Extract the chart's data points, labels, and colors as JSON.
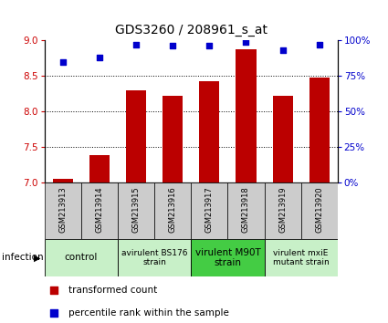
{
  "title": "GDS3260 / 208961_s_at",
  "categories": [
    "GSM213913",
    "GSM213914",
    "GSM213915",
    "GSM213916",
    "GSM213917",
    "GSM213918",
    "GSM213919",
    "GSM213920"
  ],
  "bar_values": [
    7.05,
    7.38,
    8.3,
    8.22,
    8.42,
    8.88,
    8.22,
    8.48
  ],
  "percentile_values": [
    85,
    88,
    97,
    96,
    96,
    99,
    93,
    97
  ],
  "ylim_left": [
    7.0,
    9.0
  ],
  "ylim_right": [
    0,
    100
  ],
  "yticks_left": [
    7.0,
    7.5,
    8.0,
    8.5,
    9.0
  ],
  "yticks_right": [
    0,
    25,
    50,
    75,
    100
  ],
  "ytick_labels_right": [
    "0%",
    "25%",
    "50%",
    "75%",
    "100%"
  ],
  "bar_color": "#bb0000",
  "dot_color": "#0000cc",
  "bar_bottom": 7.0,
  "grid_values": [
    7.5,
    8.0,
    8.5
  ],
  "groups": [
    {
      "label": "control",
      "start": 0,
      "end": 2,
      "color": "#c8f0c8",
      "bold": true
    },
    {
      "label": "avirulent BS176\nstrain",
      "start": 2,
      "end": 4,
      "color": "#c8f0c8",
      "bold": false
    },
    {
      "label": "virulent M90T\nstrain",
      "start": 4,
      "end": 6,
      "color": "#44cc44",
      "bold": true
    },
    {
      "label": "virulent mxiE\nmutant strain",
      "start": 6,
      "end": 8,
      "color": "#c8f0c8",
      "bold": false
    }
  ],
  "infection_label": "infection",
  "legend_items": [
    {
      "label": "transformed count",
      "color": "#bb0000",
      "marker": "s"
    },
    {
      "label": "percentile rank within the sample",
      "color": "#0000cc",
      "marker": "s"
    }
  ],
  "left_tick_color": "#cc0000",
  "right_tick_color": "#0000cc",
  "sample_box_color": "#cccccc",
  "bar_width": 0.55
}
